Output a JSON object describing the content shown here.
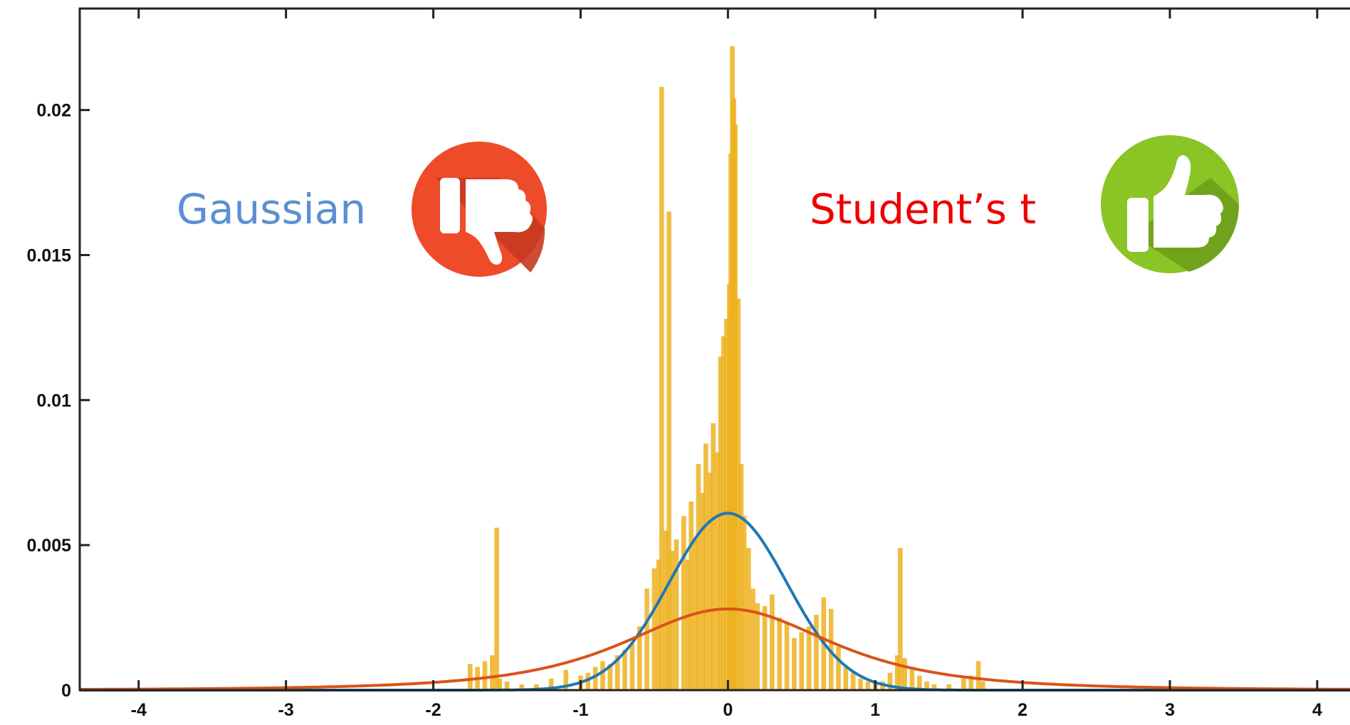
{
  "chart_data": {
    "type": "histogram-with-density-curves",
    "title": "",
    "xlabel": "",
    "ylabel": "",
    "xlim": [
      -4.4,
      4.3
    ],
    "ylim": [
      0,
      0.0235
    ],
    "x_ticks": [
      -4,
      -3,
      -2,
      -1,
      0,
      1,
      2,
      3,
      4
    ],
    "x_tick_labels": [
      "-4",
      "-3",
      "-2",
      "-1",
      "0",
      "1",
      "2",
      "3",
      "4"
    ],
    "y_ticks": [
      0,
      0.005,
      0.01,
      0.015,
      0.02
    ],
    "y_tick_labels": [
      "0",
      "0.005",
      "0.01",
      "0.015",
      "0.02"
    ],
    "grid": false,
    "series": [
      {
        "name": "Gaussian",
        "kind": "density",
        "mean": 0,
        "sigma": 0.4,
        "peak": 0.0061,
        "color": "#1f77b4"
      },
      {
        "name": "Student's t",
        "kind": "density",
        "location": 0,
        "scale": 0.75,
        "dof": 2.5,
        "peak": 0.0028,
        "color": "#d95319"
      },
      {
        "kind": "histogram",
        "color": "#edb120",
        "bins": [
          [
            -1.75,
            0.0009
          ],
          [
            -1.7,
            0.0008
          ],
          [
            -1.65,
            0.001
          ],
          [
            -1.6,
            0.0012
          ],
          [
            -1.57,
            0.0056
          ],
          [
            -1.55,
            0.0004
          ],
          [
            -1.5,
            0.0003
          ],
          [
            -1.4,
            0.0002
          ],
          [
            -1.3,
            0.0002
          ],
          [
            -1.2,
            0.0004
          ],
          [
            -1.1,
            0.0007
          ],
          [
            -1.0,
            0.0005
          ],
          [
            -0.95,
            0.0006
          ],
          [
            -0.9,
            0.0008
          ],
          [
            -0.85,
            0.001
          ],
          [
            -0.8,
            0.0009
          ],
          [
            -0.75,
            0.0012
          ],
          [
            -0.7,
            0.0014
          ],
          [
            -0.65,
            0.0016
          ],
          [
            -0.6,
            0.0022
          ],
          [
            -0.55,
            0.0035
          ],
          [
            -0.5,
            0.0042
          ],
          [
            -0.47,
            0.0045
          ],
          [
            -0.45,
            0.0208
          ],
          [
            -0.42,
            0.0055
          ],
          [
            -0.4,
            0.0165
          ],
          [
            -0.38,
            0.0048
          ],
          [
            -0.35,
            0.0052
          ],
          [
            -0.3,
            0.006
          ],
          [
            -0.27,
            0.0045
          ],
          [
            -0.25,
            0.0065
          ],
          [
            -0.22,
            0.0052
          ],
          [
            -0.2,
            0.0078
          ],
          [
            -0.17,
            0.0068
          ],
          [
            -0.15,
            0.0085
          ],
          [
            -0.12,
            0.0075
          ],
          [
            -0.1,
            0.0092
          ],
          [
            -0.07,
            0.0082
          ],
          [
            -0.05,
            0.0115
          ],
          [
            -0.03,
            0.0122
          ],
          [
            -0.01,
            0.0128
          ],
          [
            0.01,
            0.014
          ],
          [
            0.02,
            0.0185
          ],
          [
            0.03,
            0.0222
          ],
          [
            0.04,
            0.0204
          ],
          [
            0.05,
            0.0195
          ],
          [
            0.07,
            0.0135
          ],
          [
            0.09,
            0.0078
          ],
          [
            0.11,
            0.006
          ],
          [
            0.14,
            0.0049
          ],
          [
            0.17,
            0.0035
          ],
          [
            0.2,
            0.003
          ],
          [
            0.25,
            0.0029
          ],
          [
            0.3,
            0.0033
          ],
          [
            0.35,
            0.0025
          ],
          [
            0.4,
            0.0023
          ],
          [
            0.45,
            0.0018
          ],
          [
            0.5,
            0.002
          ],
          [
            0.55,
            0.0022
          ],
          [
            0.6,
            0.0026
          ],
          [
            0.65,
            0.0032
          ],
          [
            0.7,
            0.0028
          ],
          [
            0.75,
            0.0015
          ],
          [
            0.8,
            0.0008
          ],
          [
            0.85,
            0.0006
          ],
          [
            0.9,
            0.0004
          ],
          [
            0.95,
            0.0003
          ],
          [
            1.0,
            0.0003
          ],
          [
            1.05,
            0.0003
          ],
          [
            1.1,
            0.0006
          ],
          [
            1.15,
            0.0012
          ],
          [
            1.17,
            0.0049
          ],
          [
            1.2,
            0.0011
          ],
          [
            1.25,
            0.0008
          ],
          [
            1.3,
            0.0005
          ],
          [
            1.35,
            0.0003
          ],
          [
            1.4,
            0.0002
          ],
          [
            1.5,
            0.0002
          ],
          [
            1.6,
            0.0004
          ],
          [
            1.65,
            0.0005
          ],
          [
            1.7,
            0.001
          ],
          [
            1.73,
            0.0003
          ]
        ]
      }
    ],
    "annotations": [
      {
        "text": "Gaussian",
        "color": "#5b8fd1",
        "icon": "thumbs-down-icon",
        "icon_color": "#ee4b2b"
      },
      {
        "text": "Student’s t",
        "color": "#ee0000",
        "icon": "thumbs-up-icon",
        "icon_color": "#8ac425"
      }
    ]
  }
}
